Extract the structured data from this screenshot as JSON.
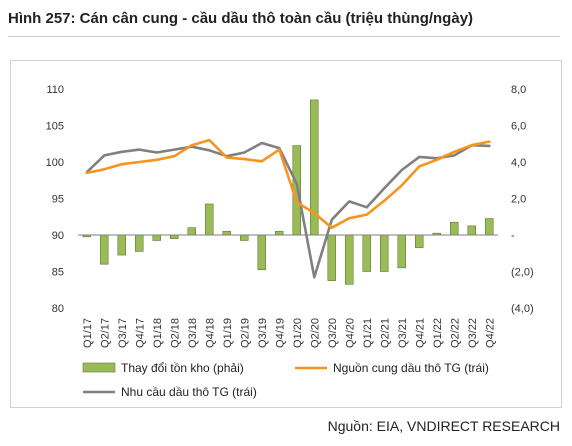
{
  "figure": {
    "title": "Hình 257: Cán cân cung - cầu dầu thô toàn cầu (triệu thùng/ngày)",
    "source": "Nguồn: EIA, VNDIRECT RESEARCH"
  },
  "colors": {
    "bars": "#9bbb59",
    "bars_edge": "#5a7a2e",
    "supply": "#f7941d",
    "demand": "#808080",
    "axis_line": "#7f7f7f"
  },
  "chart_data": {
    "type": "bar",
    "categories": [
      "Q1/17",
      "Q2/17",
      "Q3/17",
      "Q4/17",
      "Q1/18",
      "Q2/18",
      "Q3/18",
      "Q4/18",
      "Q1/19",
      "Q2/19",
      "Q3/19",
      "Q4/19",
      "Q1/20",
      "Q2/20",
      "Q3/20",
      "Q4/20",
      "Q1/21",
      "Q2/21",
      "Q3/21",
      "Q4/21",
      "Q1/22",
      "Q2/22",
      "Q3/22",
      "Q4/22"
    ],
    "series": [
      {
        "name": "Thay đổi tồn kho (phải)",
        "type": "bar",
        "axis": "right",
        "values": [
          -0.1,
          -1.6,
          -1.1,
          -0.9,
          -0.3,
          -0.2,
          0.4,
          1.7,
          0.2,
          -0.3,
          -1.9,
          0.2,
          4.9,
          7.4,
          -2.5,
          -2.7,
          -2.0,
          -2.0,
          -1.8,
          -0.7,
          0.1,
          0.7,
          0.5,
          0.9
        ]
      },
      {
        "name": "Nguồn cung dầu thô TG (trái)",
        "type": "line",
        "axis": "left",
        "values": [
          98.5,
          99.0,
          99.7,
          100.0,
          100.3,
          100.8,
          102.3,
          103.0,
          100.6,
          100.4,
          100.1,
          101.7,
          94.5,
          93.0,
          91.0,
          92.3,
          92.8,
          94.7,
          96.8,
          99.4,
          100.3,
          101.4,
          102.3,
          102.8
        ]
      },
      {
        "name": "Nhu cầu dầu thô TG (trái)",
        "type": "line",
        "axis": "left",
        "values": [
          98.6,
          100.9,
          101.4,
          101.7,
          101.3,
          101.7,
          102.1,
          101.6,
          100.8,
          101.3,
          102.6,
          101.9,
          97.0,
          84.2,
          92.1,
          94.6,
          93.8,
          96.4,
          98.9,
          100.7,
          100.5,
          100.9,
          102.3,
          102.2
        ]
      }
    ],
    "y_left": {
      "range": [
        80,
        110
      ],
      "ticks": [
        80,
        85,
        90,
        95,
        100,
        105,
        110
      ],
      "tick_labels": [
        "80",
        "85",
        "90",
        "95",
        "100",
        "105",
        "110"
      ]
    },
    "y_right": {
      "range": [
        -4,
        8
      ],
      "ticks": [
        -4,
        -2,
        0,
        2,
        4,
        6,
        8
      ],
      "tick_labels": [
        "(4,0)",
        "(2,0)",
        "-",
        "2,0",
        "4,0",
        "6,0",
        "8,0"
      ]
    },
    "grid": false,
    "legend_position": "bottom"
  }
}
